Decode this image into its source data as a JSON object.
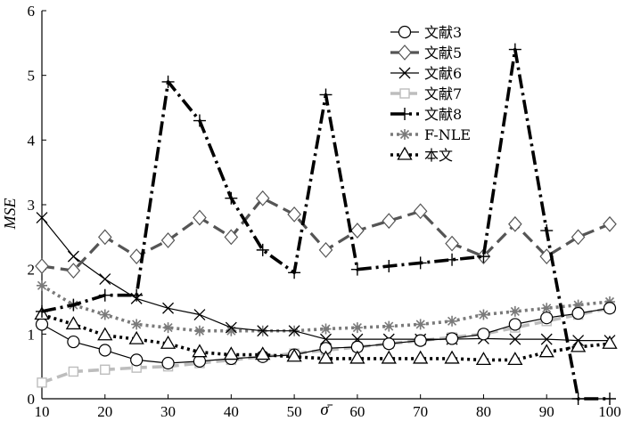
{
  "chart_data": {
    "type": "line",
    "xlabel": "σ̄",
    "ylabel": "MSE",
    "xlim": [
      10,
      100
    ],
    "ylim": [
      0,
      6
    ],
    "xticks": [
      10,
      20,
      30,
      40,
      50,
      60,
      70,
      80,
      90,
      100
    ],
    "yticks": [
      0,
      1,
      2,
      3,
      4,
      5,
      6
    ],
    "grid": false,
    "legend_position": "top-right",
    "x": [
      10,
      15,
      20,
      25,
      30,
      35,
      40,
      45,
      50,
      55,
      60,
      65,
      70,
      75,
      80,
      85,
      90,
      95,
      100
    ],
    "series": [
      {
        "name": "文献3",
        "color": "#000000",
        "marker": "circle",
        "line": "solid",
        "values": [
          1.15,
          0.88,
          0.75,
          0.6,
          0.55,
          0.58,
          0.62,
          0.65,
          0.68,
          0.78,
          0.8,
          0.85,
          0.9,
          0.93,
          1.0,
          1.15,
          1.25,
          1.32,
          1.4
        ]
      },
      {
        "name": "文献5",
        "color": "#555555",
        "marker": "diamond",
        "line": "dashed",
        "values": [
          2.05,
          1.98,
          2.5,
          2.2,
          2.45,
          2.8,
          2.5,
          3.1,
          2.85,
          2.3,
          2.6,
          2.75,
          2.9,
          2.4,
          2.2,
          2.7,
          2.2,
          2.5,
          2.7
        ]
      },
      {
        "name": "文献6",
        "color": "#000000",
        "marker": "x",
        "line": "solid",
        "values": [
          2.8,
          2.2,
          1.85,
          1.55,
          1.4,
          1.3,
          1.1,
          1.05,
          1.05,
          0.92,
          0.92,
          0.92,
          0.92,
          0.92,
          0.93,
          0.92,
          0.92,
          0.9,
          0.9
        ]
      },
      {
        "name": "文献7",
        "color": "#bdbdbd",
        "marker": "square",
        "line": "dashed",
        "values": [
          0.25,
          0.42,
          0.45,
          0.48,
          0.5,
          0.55,
          0.6,
          0.65,
          0.7,
          0.75,
          0.8,
          0.85,
          0.9,
          0.95,
          1.0,
          1.1,
          1.2,
          1.3,
          1.4
        ]
      },
      {
        "name": "文献8",
        "color": "#000000",
        "marker": "plus",
        "line": "dashdot",
        "values": [
          1.35,
          1.45,
          1.6,
          1.6,
          4.9,
          4.3,
          3.1,
          2.3,
          1.95,
          4.7,
          2.0,
          2.05,
          2.1,
          2.15,
          2.2,
          5.4,
          2.6,
          0.0,
          0.0
        ]
      },
      {
        "name": "F-NLE",
        "color": "#7a7a7a",
        "marker": "asterisk",
        "line": "dotted",
        "values": [
          1.75,
          1.45,
          1.3,
          1.15,
          1.1,
          1.05,
          1.05,
          1.05,
          1.05,
          1.08,
          1.1,
          1.12,
          1.15,
          1.2,
          1.3,
          1.35,
          1.4,
          1.45,
          1.5
        ]
      },
      {
        "name": "本文",
        "color": "#000000",
        "marker": "triangle",
        "line": "dotted",
        "values": [
          1.3,
          1.15,
          0.98,
          0.92,
          0.85,
          0.72,
          0.68,
          0.68,
          0.65,
          0.62,
          0.62,
          0.62,
          0.62,
          0.62,
          0.6,
          0.6,
          0.72,
          0.8,
          0.85
        ]
      }
    ]
  }
}
